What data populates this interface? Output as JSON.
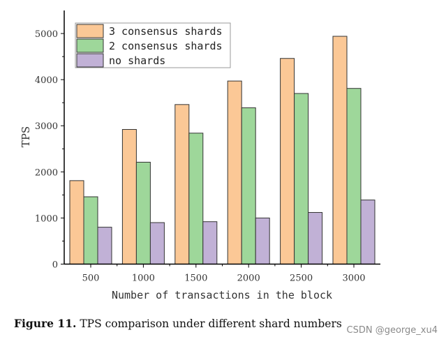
{
  "chart_data": {
    "type": "bar",
    "title": "",
    "xlabel": "Number of transactions in the block",
    "ylabel": "TPS",
    "categories": [
      "500",
      "1000",
      "1500",
      "2000",
      "2500",
      "3000"
    ],
    "ylim": [
      0,
      5500
    ],
    "yticks": [
      0,
      1000,
      2000,
      3000,
      4000,
      5000
    ],
    "grid": false,
    "legend": "top-left",
    "series": [
      {
        "name": "3 consensus shards",
        "color": "#fbc896",
        "values": [
          1810,
          2920,
          3460,
          3970,
          4460,
          4940
        ]
      },
      {
        "name": "2 consensus shards",
        "color": "#9ed79a",
        "values": [
          1460,
          2210,
          2840,
          3390,
          3700,
          3810
        ]
      },
      {
        "name": "no shards",
        "color": "#c1b1d6",
        "values": [
          800,
          900,
          920,
          1000,
          1120,
          1390
        ]
      }
    ]
  },
  "caption": {
    "label": "Figure 11.",
    "text": " TPS comparison under different shard numbers"
  },
  "watermark": "CSDN @george_xu4"
}
